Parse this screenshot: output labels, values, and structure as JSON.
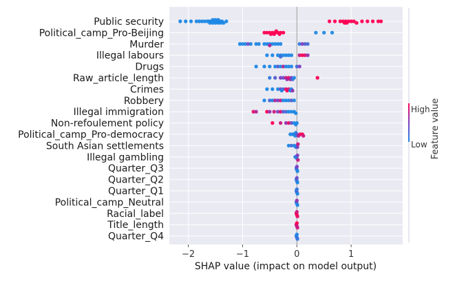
{
  "chart_data": {
    "type": "scatter",
    "subtype": "shap-beeswarm",
    "xlabel": "SHAP value (impact on model output)",
    "xlim": [
      -2.35,
      1.95
    ],
    "xticks": [
      -2,
      -1,
      0,
      1
    ],
    "xtick_labels": [
      "−2",
      "−1",
      "0",
      "1"
    ],
    "grid": "on",
    "colorbar": {
      "title": "Feature value",
      "high_label": "High",
      "low_label": "Low",
      "low_color": "#1E88E5",
      "high_color": "#FF0052"
    },
    "background_color": "#EAEAF2",
    "features": [
      {
        "name": "Public security",
        "points": [
          [
            -2.15,
            0
          ],
          [
            -2.05,
            0
          ],
          [
            -1.95,
            0
          ],
          [
            -1.85,
            0
          ],
          [
            -1.8,
            0
          ],
          [
            -1.75,
            0
          ],
          [
            -1.7,
            0
          ],
          [
            -1.65,
            0
          ],
          [
            -1.62,
            0
          ],
          [
            -1.58,
            0
          ],
          [
            -1.55,
            0
          ],
          [
            -1.52,
            0
          ],
          [
            -1.5,
            0
          ],
          [
            -1.48,
            0
          ],
          [
            -1.45,
            0
          ],
          [
            -1.42,
            0
          ],
          [
            -1.4,
            0
          ],
          [
            -1.38,
            0
          ],
          [
            -1.35,
            0
          ],
          [
            -1.3,
            0
          ],
          [
            -1.6,
            0
          ],
          [
            -1.5,
            0
          ],
          [
            -1.55,
            0
          ],
          [
            -1.45,
            0
          ],
          [
            0.6,
            1
          ],
          [
            0.7,
            1
          ],
          [
            0.8,
            1
          ],
          [
            0.85,
            1
          ],
          [
            0.9,
            1
          ],
          [
            0.95,
            1
          ],
          [
            1.0,
            1
          ],
          [
            1.05,
            1
          ],
          [
            1.1,
            1
          ],
          [
            1.2,
            1
          ],
          [
            1.3,
            1
          ],
          [
            1.4,
            1
          ],
          [
            1.5,
            1
          ],
          [
            1.55,
            1
          ],
          [
            0.88,
            1
          ],
          [
            0.92,
            1
          ]
        ]
      },
      {
        "name": "Political_camp_Pro-Beijing",
        "points": [
          [
            -0.6,
            1
          ],
          [
            -0.55,
            1
          ],
          [
            -0.5,
            1
          ],
          [
            -0.45,
            1
          ],
          [
            -0.4,
            1
          ],
          [
            -0.35,
            1
          ],
          [
            -0.3,
            1
          ],
          [
            -0.25,
            1
          ],
          [
            -0.48,
            1
          ],
          [
            -0.42,
            1
          ],
          [
            -0.38,
            1
          ],
          [
            -0.32,
            1
          ],
          [
            0.35,
            0
          ],
          [
            0.5,
            0
          ],
          [
            0.65,
            0
          ]
        ]
      },
      {
        "name": "Murder",
        "points": [
          [
            -1.05,
            0
          ],
          [
            -1.0,
            0
          ],
          [
            -0.95,
            0
          ],
          [
            -0.85,
            0
          ],
          [
            -0.75,
            0
          ],
          [
            -0.7,
            0
          ],
          [
            -0.6,
            0
          ],
          [
            -0.55,
            0
          ],
          [
            -0.5,
            0
          ],
          [
            -0.45,
            0
          ],
          [
            -0.4,
            0
          ],
          [
            -0.35,
            0
          ],
          [
            -0.3,
            0
          ],
          [
            -0.9,
            0.4
          ],
          [
            -0.5,
            0.7
          ],
          [
            0.05,
            0.1
          ],
          [
            0.1,
            0.5
          ],
          [
            0.15,
            0.3
          ],
          [
            0.2,
            0.2
          ]
        ]
      },
      {
        "name": "Illegal labours",
        "points": [
          [
            -0.55,
            0
          ],
          [
            -0.45,
            0
          ],
          [
            -0.35,
            0
          ],
          [
            -0.3,
            0
          ],
          [
            -0.25,
            0
          ],
          [
            -0.2,
            0
          ],
          [
            -0.15,
            0
          ],
          [
            -0.1,
            0
          ],
          [
            -0.3,
            0.2
          ],
          [
            0.05,
            0.8
          ],
          [
            0.1,
            1
          ],
          [
            0.15,
            0.9
          ],
          [
            0.2,
            0.6
          ]
        ]
      },
      {
        "name": "Drugs",
        "points": [
          [
            -0.75,
            0
          ],
          [
            -0.6,
            0
          ],
          [
            -0.5,
            0
          ],
          [
            -0.4,
            0
          ],
          [
            -0.35,
            0.3
          ],
          [
            -0.3,
            0
          ],
          [
            -0.25,
            0.7
          ],
          [
            -0.2,
            0
          ],
          [
            -0.15,
            0
          ],
          [
            -0.1,
            0
          ],
          [
            0.0,
            0.2
          ],
          [
            0.05,
            0.5
          ]
        ]
      },
      {
        "name": "Raw_article_length",
        "points": [
          [
            -0.5,
            0.1
          ],
          [
            -0.4,
            0.3
          ],
          [
            -0.3,
            0.5
          ],
          [
            -0.25,
            0.4
          ],
          [
            -0.2,
            0.8
          ],
          [
            -0.18,
            0.6
          ],
          [
            -0.15,
            0.9
          ],
          [
            -0.12,
            0.7
          ],
          [
            -0.1,
            0.5
          ],
          [
            -0.08,
            0.2
          ],
          [
            -0.05,
            0
          ],
          [
            0.38,
            1
          ]
        ]
      },
      {
        "name": "Crimes",
        "points": [
          [
            -0.55,
            0
          ],
          [
            -0.45,
            0
          ],
          [
            -0.35,
            0
          ],
          [
            -0.3,
            0.4
          ],
          [
            -0.28,
            0
          ],
          [
            -0.25,
            0.2
          ],
          [
            -0.2,
            0.9
          ],
          [
            -0.18,
            1
          ],
          [
            -0.15,
            0.8
          ],
          [
            -0.12,
            0
          ],
          [
            -0.1,
            0
          ],
          [
            -0.08,
            0.6
          ]
        ]
      },
      {
        "name": "Robbery",
        "points": [
          [
            -0.6,
            0
          ],
          [
            -0.5,
            0.2
          ],
          [
            -0.45,
            0
          ],
          [
            -0.4,
            0.7
          ],
          [
            -0.35,
            0.5
          ],
          [
            -0.3,
            0.8
          ],
          [
            -0.25,
            0
          ],
          [
            -0.2,
            0
          ],
          [
            -0.15,
            0
          ],
          [
            -0.1,
            0.3
          ],
          [
            -0.05,
            0
          ]
        ]
      },
      {
        "name": "Illegal immigration",
        "points": [
          [
            -0.8,
            0.9
          ],
          [
            -0.75,
            0.7
          ],
          [
            -0.55,
            1
          ],
          [
            -0.5,
            0.6
          ],
          [
            -0.42,
            0.8
          ],
          [
            -0.35,
            0.5
          ],
          [
            -0.3,
            0.9
          ],
          [
            -0.25,
            0.3
          ],
          [
            -0.2,
            0.2
          ],
          [
            -0.15,
            0
          ],
          [
            -0.1,
            0
          ],
          [
            -0.05,
            0
          ],
          [
            -0.02,
            0
          ]
        ]
      },
      {
        "name": "Non-refoulement policy",
        "points": [
          [
            -0.45,
            1
          ],
          [
            -0.3,
            0.8
          ],
          [
            -0.2,
            0.6
          ],
          [
            -0.15,
            0.9
          ],
          [
            -0.1,
            0.4
          ],
          [
            -0.05,
            0
          ],
          [
            -0.02,
            0
          ],
          [
            0.0,
            0
          ]
        ]
      },
      {
        "name": "Political_camp_Pro-democracy",
        "points": [
          [
            -0.12,
            0
          ],
          [
            -0.08,
            0
          ],
          [
            -0.05,
            0
          ],
          [
            -0.03,
            0
          ],
          [
            -0.02,
            0
          ],
          [
            0.0,
            0.3
          ],
          [
            0.03,
            0.7
          ],
          [
            0.06,
            0.9
          ],
          [
            0.1,
            1
          ],
          [
            0.12,
            0.8
          ]
        ]
      },
      {
        "name": "South Asian settlements",
        "points": [
          [
            -0.15,
            0
          ],
          [
            -0.1,
            0.2
          ],
          [
            -0.05,
            0
          ],
          [
            -0.02,
            0
          ],
          [
            0.0,
            0
          ],
          [
            0.01,
            0.5
          ],
          [
            0.02,
            0.8
          ]
        ]
      },
      {
        "name": "Illegal gambling",
        "points": [
          [
            -0.03,
            0
          ],
          [
            -0.01,
            0.2
          ],
          [
            0.0,
            0
          ],
          [
            0.01,
            0.5
          ],
          [
            0.02,
            0.8
          ]
        ]
      },
      {
        "name": "Quarter_Q3",
        "points": [
          [
            -0.01,
            0
          ],
          [
            0.0,
            0.2
          ],
          [
            0.0,
            0.5
          ],
          [
            0.01,
            0
          ]
        ]
      },
      {
        "name": "Quarter_Q2",
        "points": [
          [
            -0.01,
            0
          ],
          [
            0.0,
            0.2
          ],
          [
            0.0,
            0.4
          ],
          [
            0.01,
            0
          ]
        ]
      },
      {
        "name": "Quarter_Q1",
        "points": [
          [
            -0.01,
            0
          ],
          [
            0.0,
            0.3
          ],
          [
            0.0,
            0.1
          ],
          [
            0.01,
            0
          ]
        ]
      },
      {
        "name": "Political_camp_Neutral",
        "points": [
          [
            -0.01,
            0
          ],
          [
            0.0,
            0.2
          ],
          [
            0.0,
            0.6
          ],
          [
            0.01,
            0
          ]
        ]
      },
      {
        "name": "Racial_label",
        "points": [
          [
            -0.01,
            0.9
          ],
          [
            0.0,
            1
          ],
          [
            0.0,
            0.8
          ],
          [
            0.01,
            0.9
          ]
        ]
      },
      {
        "name": "Title_length",
        "points": [
          [
            -0.01,
            0.9
          ],
          [
            0.0,
            0.7
          ],
          [
            0.0,
            1
          ],
          [
            0.01,
            0.8
          ]
        ]
      },
      {
        "name": "Quarter_Q4",
        "points": [
          [
            -0.01,
            0
          ],
          [
            0.0,
            0.2
          ],
          [
            0.0,
            0
          ],
          [
            0.01,
            0.1
          ]
        ]
      }
    ]
  }
}
